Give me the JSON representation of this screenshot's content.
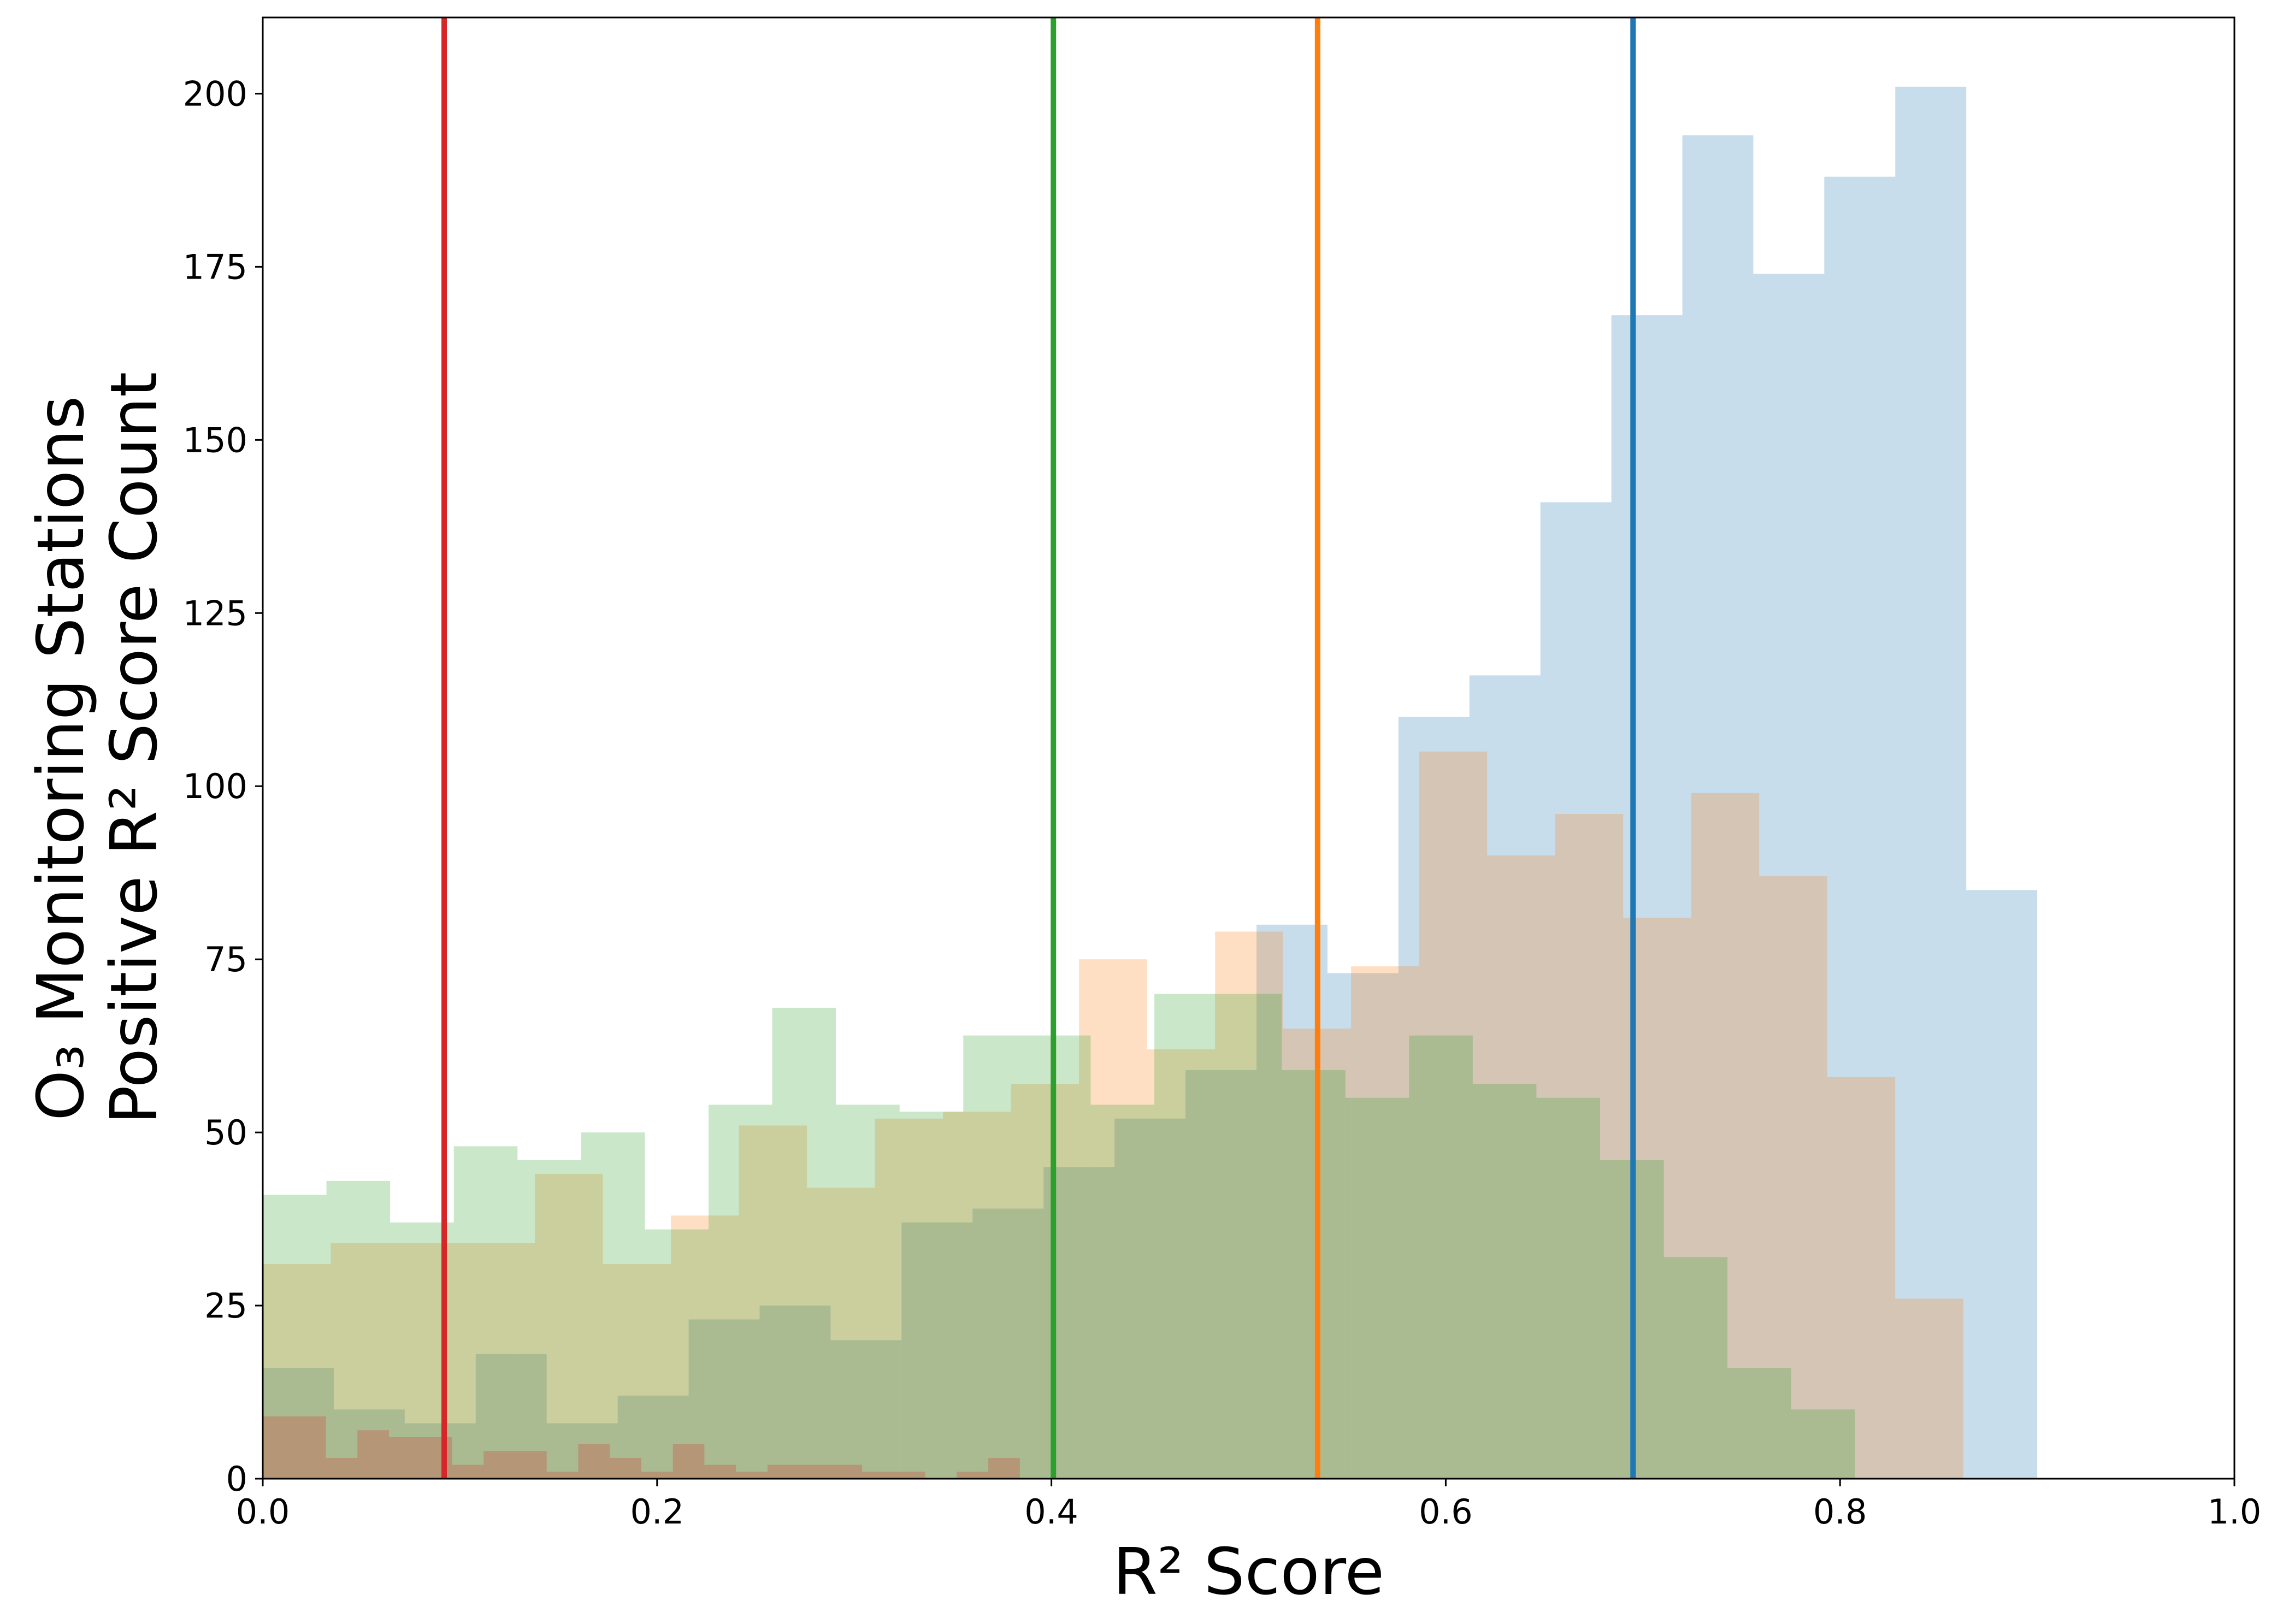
{
  "chart_data": {
    "type": "histogram",
    "xlabel": "R² Score",
    "ylabel_lines": [
      "O₃ Monitoring Stations",
      "Positive R² Score Count"
    ],
    "xlim": [
      0.0,
      1.0
    ],
    "ylim": [
      0,
      211
    ],
    "xticks": [
      0.0,
      0.2,
      0.4,
      0.6,
      0.8,
      1.0
    ],
    "xtick_labels": [
      "0.0",
      "0.2",
      "0.4",
      "0.6",
      "0.8",
      "1.0"
    ],
    "yticks": [
      0,
      25,
      50,
      75,
      100,
      125,
      150,
      175,
      200
    ],
    "ytick_labels": [
      "0",
      "25",
      "50",
      "75",
      "100",
      "125",
      "150",
      "175",
      "200"
    ],
    "grid": false,
    "series": [
      {
        "color": "#1f77b4",
        "opacity": 0.25,
        "mean_line": 0.695,
        "bins": [
          [
            0.0,
            0.036,
            16
          ],
          [
            0.036,
            0.072,
            10
          ],
          [
            0.072,
            0.108,
            8
          ],
          [
            0.108,
            0.144,
            18
          ],
          [
            0.144,
            0.18,
            8
          ],
          [
            0.18,
            0.216,
            12
          ],
          [
            0.216,
            0.252,
            23
          ],
          [
            0.252,
            0.288,
            25
          ],
          [
            0.288,
            0.324,
            20
          ],
          [
            0.324,
            0.36,
            37
          ],
          [
            0.36,
            0.396,
            39
          ],
          [
            0.396,
            0.432,
            45
          ],
          [
            0.432,
            0.468,
            52
          ],
          [
            0.468,
            0.504,
            59
          ],
          [
            0.504,
            0.54,
            80
          ],
          [
            0.54,
            0.576,
            73
          ],
          [
            0.576,
            0.612,
            110
          ],
          [
            0.612,
            0.648,
            116
          ],
          [
            0.648,
            0.684,
            141
          ],
          [
            0.684,
            0.72,
            168
          ],
          [
            0.72,
            0.756,
            194
          ],
          [
            0.756,
            0.792,
            174
          ],
          [
            0.792,
            0.828,
            188
          ],
          [
            0.828,
            0.864,
            201
          ],
          [
            0.864,
            0.9,
            85
          ]
        ]
      },
      {
        "color": "#ff7f0e",
        "opacity": 0.25,
        "mean_line": 0.535,
        "bins": [
          [
            0.0,
            0.0345,
            31
          ],
          [
            0.0345,
            0.069,
            34
          ],
          [
            0.069,
            0.1035,
            34
          ],
          [
            0.1035,
            0.138,
            34
          ],
          [
            0.138,
            0.1725,
            44
          ],
          [
            0.1725,
            0.207,
            31
          ],
          [
            0.207,
            0.2415,
            38
          ],
          [
            0.2415,
            0.276,
            51
          ],
          [
            0.276,
            0.3105,
            42
          ],
          [
            0.3105,
            0.345,
            52
          ],
          [
            0.345,
            0.3795,
            53
          ],
          [
            0.3795,
            0.414,
            57
          ],
          [
            0.414,
            0.4485,
            75
          ],
          [
            0.4485,
            0.483,
            62
          ],
          [
            0.483,
            0.5175,
            79
          ],
          [
            0.5175,
            0.552,
            65
          ],
          [
            0.552,
            0.5865,
            74
          ],
          [
            0.5865,
            0.621,
            105
          ],
          [
            0.621,
            0.6555,
            90
          ],
          [
            0.6555,
            0.69,
            96
          ],
          [
            0.69,
            0.7245,
            81
          ],
          [
            0.7245,
            0.759,
            99
          ],
          [
            0.759,
            0.7935,
            87
          ],
          [
            0.7935,
            0.828,
            58
          ],
          [
            0.828,
            0.8625,
            26
          ]
        ]
      },
      {
        "color": "#2ca02c",
        "opacity": 0.25,
        "mean_line": 0.401,
        "bins": [
          [
            0.0,
            0.0323,
            41
          ],
          [
            0.0323,
            0.0646,
            43
          ],
          [
            0.0646,
            0.0969,
            37
          ],
          [
            0.0969,
            0.1292,
            48
          ],
          [
            0.1292,
            0.1615,
            46
          ],
          [
            0.1615,
            0.1938,
            50
          ],
          [
            0.1938,
            0.2261,
            36
          ],
          [
            0.2261,
            0.2584,
            54
          ],
          [
            0.2584,
            0.2907,
            68
          ],
          [
            0.2907,
            0.323,
            54
          ],
          [
            0.323,
            0.3553,
            53
          ],
          [
            0.3553,
            0.3876,
            64
          ],
          [
            0.3876,
            0.4199,
            64
          ],
          [
            0.4199,
            0.4522,
            54
          ],
          [
            0.4522,
            0.4845,
            70
          ],
          [
            0.4845,
            0.5168,
            70
          ],
          [
            0.5168,
            0.5491,
            59
          ],
          [
            0.5491,
            0.5814,
            55
          ],
          [
            0.5814,
            0.6137,
            64
          ],
          [
            0.6137,
            0.646,
            57
          ],
          [
            0.646,
            0.6783,
            55
          ],
          [
            0.6783,
            0.7106,
            46
          ],
          [
            0.7106,
            0.7429,
            32
          ],
          [
            0.7429,
            0.7752,
            16
          ],
          [
            0.7752,
            0.8075,
            10
          ]
        ]
      },
      {
        "color": "#d62728",
        "opacity": 0.25,
        "mean_line": 0.092,
        "bins": [
          [
            0.0,
            0.016,
            9
          ],
          [
            0.016,
            0.032,
            9
          ],
          [
            0.032,
            0.048,
            3
          ],
          [
            0.048,
            0.064,
            7
          ],
          [
            0.064,
            0.08,
            6
          ],
          [
            0.08,
            0.096,
            6
          ],
          [
            0.096,
            0.112,
            2
          ],
          [
            0.112,
            0.128,
            4
          ],
          [
            0.128,
            0.144,
            4
          ],
          [
            0.144,
            0.16,
            1
          ],
          [
            0.16,
            0.176,
            5
          ],
          [
            0.176,
            0.192,
            3
          ],
          [
            0.192,
            0.208,
            1
          ],
          [
            0.208,
            0.224,
            5
          ],
          [
            0.224,
            0.24,
            2
          ],
          [
            0.24,
            0.256,
            1
          ],
          [
            0.256,
            0.272,
            2
          ],
          [
            0.272,
            0.288,
            2
          ],
          [
            0.288,
            0.304,
            2
          ],
          [
            0.304,
            0.32,
            1
          ],
          [
            0.32,
            0.336,
            1
          ],
          [
            0.336,
            0.352,
            0
          ],
          [
            0.352,
            0.368,
            1
          ],
          [
            0.368,
            0.384,
            3
          ],
          [
            0.384,
            0.4,
            0
          ]
        ]
      }
    ]
  }
}
